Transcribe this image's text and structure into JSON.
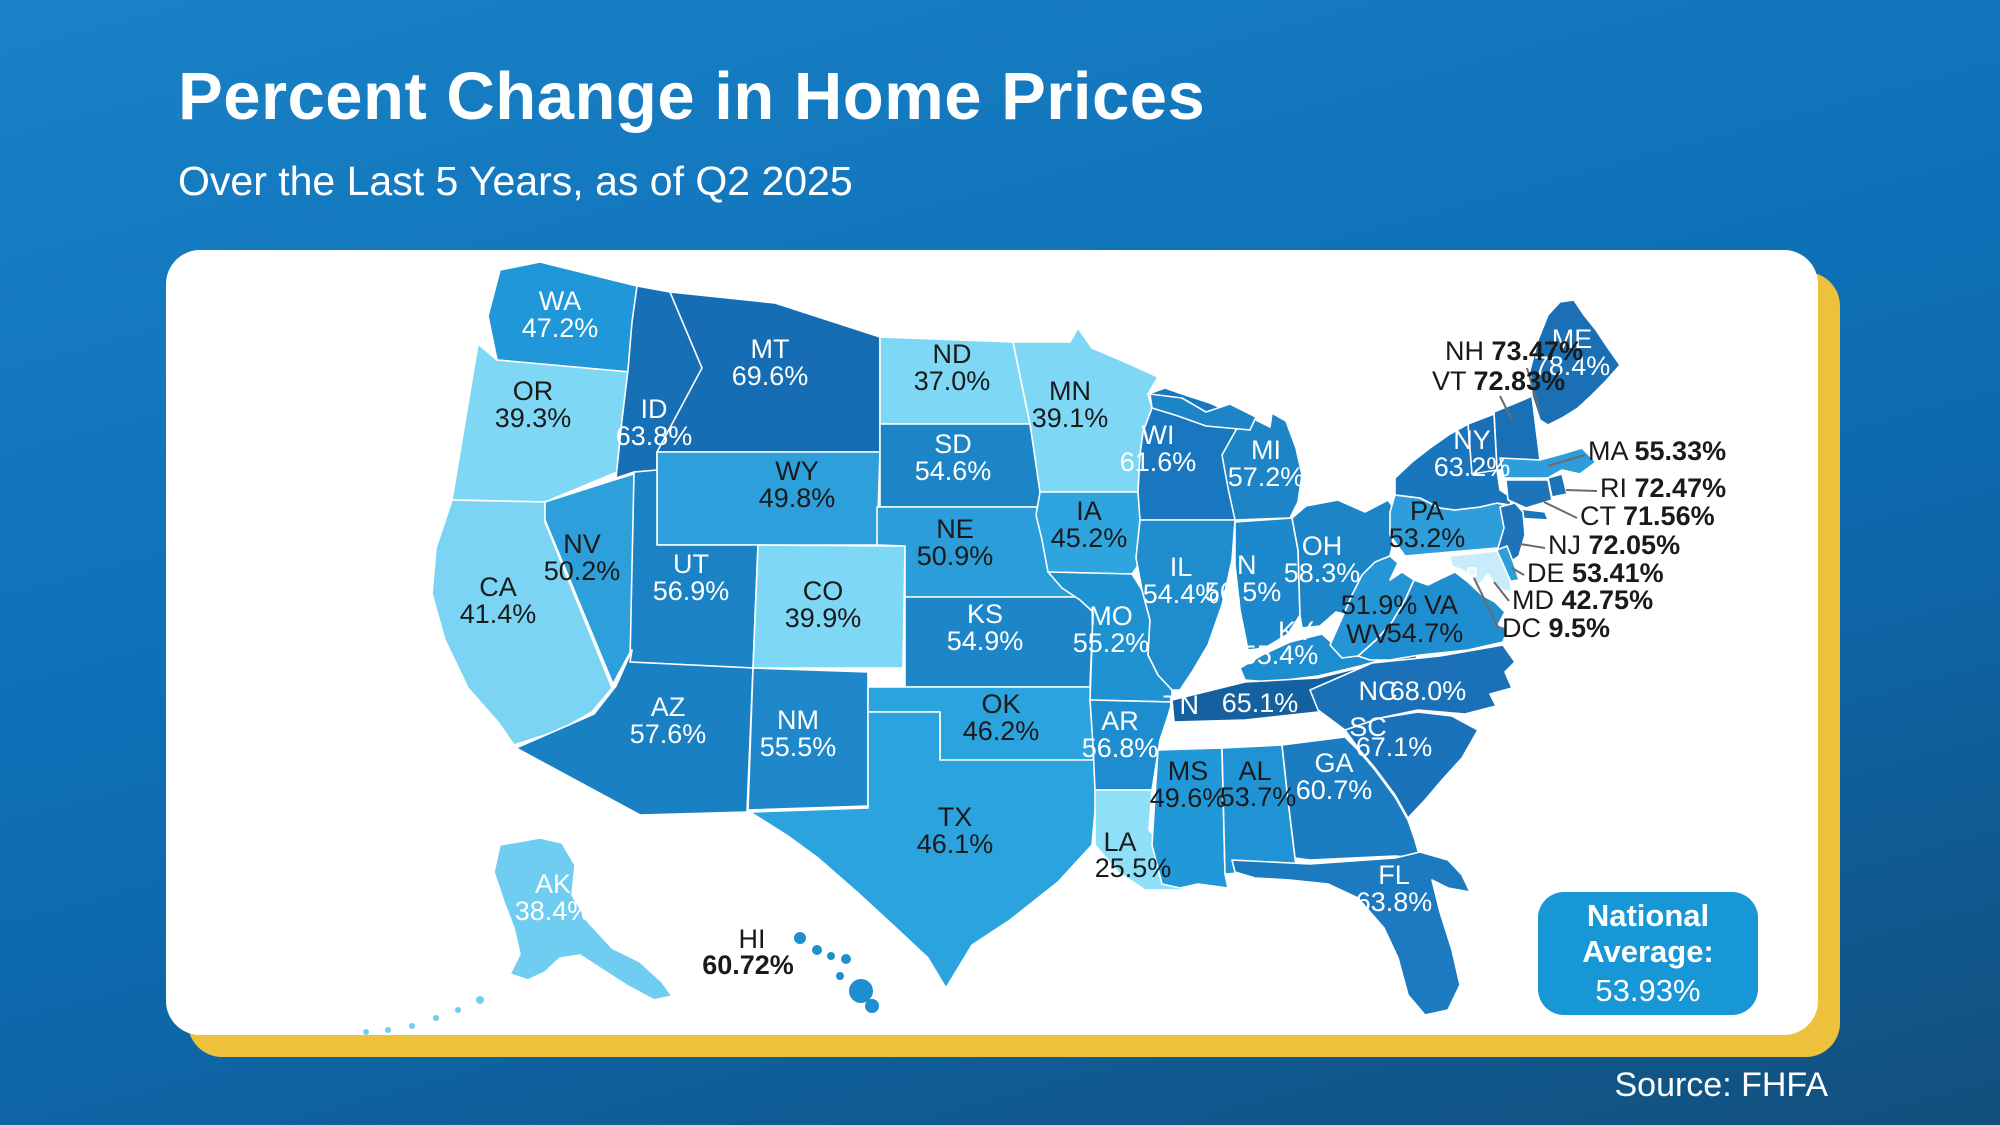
{
  "header": {
    "title": "Percent Change in Home Prices",
    "subtitle": "Over the Last 5 Years, as of Q2 2025"
  },
  "source": {
    "label": "Source: FHFA"
  },
  "national_average": {
    "line1": "National",
    "line2": "Average:",
    "value": "53.93%"
  },
  "colors": {
    "background_top": "#1a82c6",
    "background_bottom": "#124f7c",
    "card": "#ffffff",
    "card_accent": "#edc13c",
    "badge": "#1797d5",
    "state_border": "#ffffff",
    "callout_line": "#6b6b6b",
    "label_dark": "#1a1a1a",
    "label_light": "#ffffff"
  },
  "chart_data": {
    "type": "choropleth-map",
    "title": "Percent Change in Home Prices",
    "subtitle": "Over the Last 5 Years, as of Q2 2025",
    "unit": "percent change",
    "source": "FHFA",
    "national_average": 53.93,
    "legend": "darker blue = larger increase, lighter blue = smaller increase",
    "states": [
      {
        "code": "WA",
        "value": "47.2%",
        "num": 47.2,
        "fill": "#1f97d8",
        "text": "#ffffff"
      },
      {
        "code": "OR",
        "value": "39.3%",
        "num": 39.3,
        "fill": "#7fd7f6",
        "text": "#1a1a1a"
      },
      {
        "code": "CA",
        "value": "41.4%",
        "num": 41.4,
        "fill": "#7cd4f4",
        "text": "#1a1a1a"
      },
      {
        "code": "NV",
        "value": "50.2%",
        "num": 50.2,
        "fill": "#2d9fdb",
        "text": "#1a1a1a"
      },
      {
        "code": "ID",
        "value": "63.8%",
        "num": 63.8,
        "fill": "#176fb6",
        "text": "#ffffff"
      },
      {
        "code": "MT",
        "value": "69.6%",
        "num": 69.6,
        "fill": "#176db4",
        "text": "#ffffff"
      },
      {
        "code": "WY",
        "value": "49.8%",
        "num": 49.8,
        "fill": "#2d9fda",
        "text": "#1a1a1a"
      },
      {
        "code": "UT",
        "value": "56.9%",
        "num": 56.9,
        "fill": "#1b82c5",
        "text": "#ffffff"
      },
      {
        "code": "CO",
        "value": "39.9%",
        "num": 39.9,
        "fill": "#7fd7f6",
        "text": "#1a1a1a"
      },
      {
        "code": "AZ",
        "value": "57.6%",
        "num": 57.6,
        "fill": "#1a80c4",
        "text": "#ffffff"
      },
      {
        "code": "NM",
        "value": "55.5%",
        "num": 55.5,
        "fill": "#1e88cb",
        "text": "#ffffff"
      },
      {
        "code": "ND",
        "value": "37.0%",
        "num": 37.0,
        "fill": "#7fd7f6",
        "text": "#1a1a1a"
      },
      {
        "code": "SD",
        "value": "54.6%",
        "num": 54.6,
        "fill": "#1b85c8",
        "text": "#ffffff"
      },
      {
        "code": "NE",
        "value": "50.9%",
        "num": 50.9,
        "fill": "#2a9dda",
        "text": "#1a1a1a"
      },
      {
        "code": "KS",
        "value": "54.9%",
        "num": 54.9,
        "fill": "#1c86c9",
        "text": "#ffffff"
      },
      {
        "code": "OK",
        "value": "46.2%",
        "num": 46.2,
        "fill": "#2aa3de",
        "text": "#1a1a1a"
      },
      {
        "code": "TX",
        "value": "46.1%",
        "num": 46.1,
        "fill": "#2aa3de",
        "text": "#1a1a1a"
      },
      {
        "code": "MN",
        "value": "39.1%",
        "num": 39.1,
        "fill": "#7fd7f6",
        "text": "#1a1a1a"
      },
      {
        "code": "IA",
        "value": "45.2%",
        "num": 45.2,
        "fill": "#2fa5e0",
        "text": "#1a1a1a"
      },
      {
        "code": "MO",
        "value": "55.2%",
        "num": 55.2,
        "fill": "#1f92d2",
        "text": "#ffffff"
      },
      {
        "code": "AR",
        "value": "56.8%",
        "num": 56.8,
        "fill": "#1e8dcf",
        "text": "#ffffff"
      },
      {
        "code": "LA",
        "value": "25.5%",
        "num": 25.5,
        "fill": "#8edff8",
        "text": "#1a1a1a"
      },
      {
        "code": "WI",
        "value": "61.6%",
        "num": 61.6,
        "fill": "#1977bf",
        "text": "#ffffff"
      },
      {
        "code": "IL",
        "value": "54.4%",
        "num": 54.4,
        "fill": "#1f8cce",
        "text": "#ffffff"
      },
      {
        "code": "IN",
        "value": "56.5%",
        "num": 56.5,
        "fill": "#1d88cb",
        "text": "#ffffff"
      },
      {
        "code": "MI",
        "value": "57.2%",
        "num": 57.2,
        "fill": "#1c84c7",
        "text": "#ffffff"
      },
      {
        "code": "OH",
        "value": "58.3%",
        "num": 58.3,
        "fill": "#1c85c8",
        "text": "#ffffff"
      },
      {
        "code": "KY",
        "value": "55.4%",
        "num": 55.4,
        "fill": "#1e8dcf",
        "text": "#ffffff"
      },
      {
        "code": "TN",
        "value": "65.1%",
        "num": 65.1,
        "fill": "#15609f",
        "text": "#ffffff"
      },
      {
        "code": "MS",
        "value": "49.6%",
        "num": 49.6,
        "fill": "#2199d9",
        "text": "#1a1a1a"
      },
      {
        "code": "AL",
        "value": "53.7%",
        "num": 53.7,
        "fill": "#1f93d3",
        "text": "#1a1a1a"
      },
      {
        "code": "GA",
        "value": "60.7%",
        "num": 60.7,
        "fill": "#1b7cc1",
        "text": "#ffffff"
      },
      {
        "code": "FL",
        "value": "63.8%",
        "num": 63.8,
        "fill": "#1b7ac0",
        "text": "#ffffff"
      },
      {
        "code": "SC",
        "value": "67.1%",
        "num": 67.1,
        "fill": "#1a73ba",
        "text": "#ffffff"
      },
      {
        "code": "NC",
        "value": "68.0%",
        "num": 68.0,
        "fill": "#1a71b8",
        "text": "#ffffff"
      },
      {
        "code": "VA",
        "value": "54.7%",
        "num": 54.7,
        "fill": "#1f8ed0",
        "text": "#1a1a1a"
      },
      {
        "code": "WV",
        "value": "51.9%",
        "num": 51.9,
        "fill": "#2495d5",
        "text": "#1a1a1a"
      },
      {
        "code": "PA",
        "value": "53.2%",
        "num": 53.2,
        "fill": "#2d9edb",
        "text": "#1a1a1a"
      },
      {
        "code": "NY",
        "value": "63.2%",
        "num": 63.2,
        "fill": "#1976bd",
        "text": "#ffffff"
      },
      {
        "code": "ME",
        "value": "78.4%",
        "num": 78.4,
        "fill": "#1a6fb5",
        "text": "#ffffff"
      },
      {
        "code": "AK",
        "value": "38.4%",
        "num": 38.4,
        "fill": "#6fcdf1",
        "text": "#ffffff"
      },
      {
        "code": "HI",
        "value": "60.72%",
        "num": 60.72,
        "fill": "#1f8ed0",
        "text": "#1a1a1a"
      }
    ],
    "callouts": [
      {
        "code": "NH",
        "value": "73.47%",
        "num": 73.47,
        "fill": "#1a70b6"
      },
      {
        "code": "VT",
        "value": "72.83%",
        "num": 72.83,
        "fill": "#1a70b6"
      },
      {
        "code": "MA",
        "value": "55.33%",
        "num": 55.33,
        "fill": "#2d9edb"
      },
      {
        "code": "RI",
        "value": "72.47%",
        "num": 72.47,
        "fill": "#1d74b9"
      },
      {
        "code": "CT",
        "value": "71.56%",
        "num": 71.56,
        "fill": "#1d74b9"
      },
      {
        "code": "NJ",
        "value": "72.05%",
        "num": 72.05,
        "fill": "#1d74b9"
      },
      {
        "code": "DE",
        "value": "53.41%",
        "num": 53.41,
        "fill": "#2d9edb"
      },
      {
        "code": "MD",
        "value": "42.75%",
        "num": 42.75,
        "fill": "#c9ecfb"
      },
      {
        "code": "DC",
        "value": "9.5%",
        "num": 9.5,
        "fill": "#e8f7fe"
      }
    ]
  }
}
